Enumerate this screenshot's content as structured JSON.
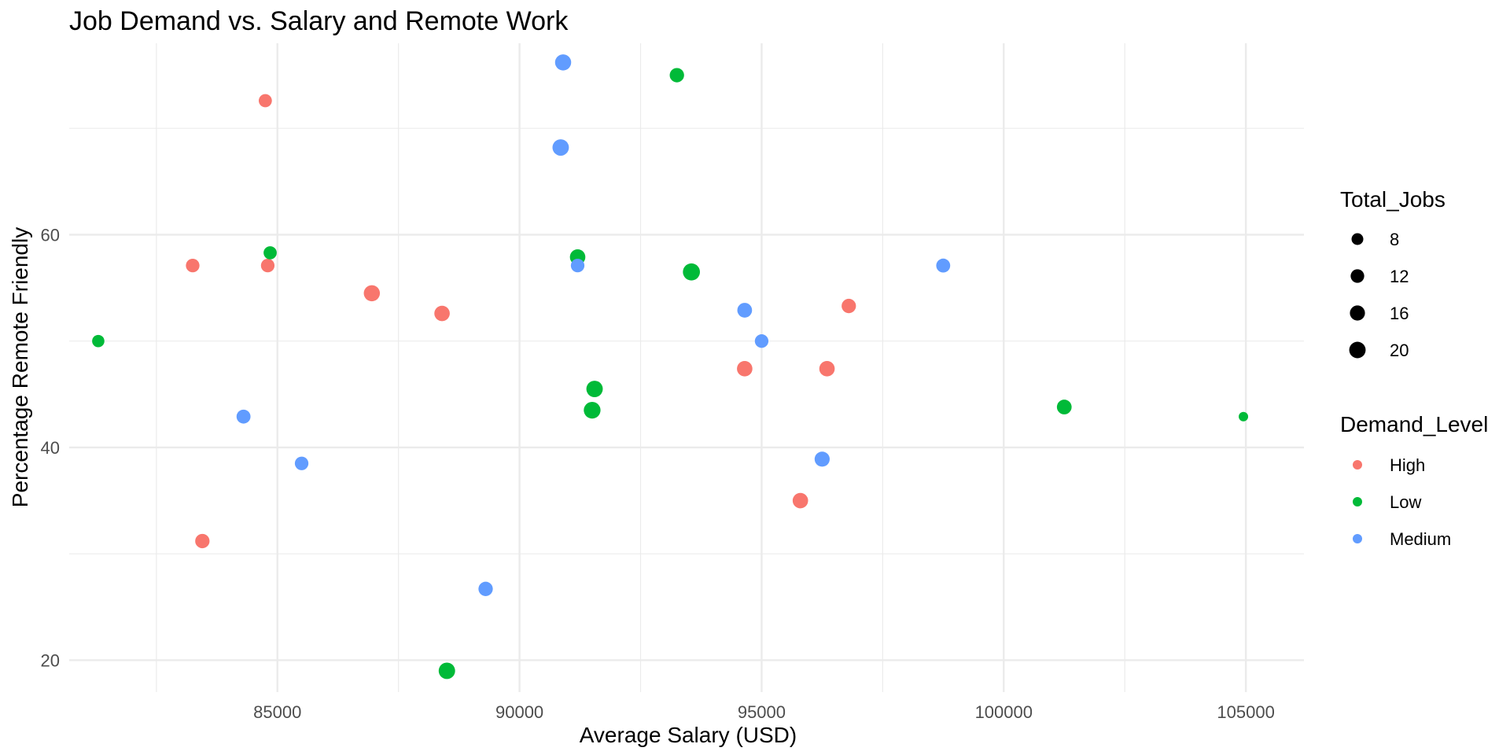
{
  "chart_data": {
    "type": "scatter",
    "title": "Job Demand vs. Salary and Remote Work",
    "xlabel": "Average Salary (USD)",
    "ylabel": "Percentage Remote Friendly",
    "xlim": [
      80700,
      106200
    ],
    "ylim": [
      17,
      78
    ],
    "x_ticks": [
      85000,
      90000,
      95000,
      100000,
      105000
    ],
    "y_ticks": [
      20,
      40,
      60
    ],
    "grid": true,
    "legend_position": "right",
    "size_legend": {
      "title": "Total_Jobs",
      "values": [
        8,
        12,
        16,
        20
      ],
      "labels": [
        "8",
        "12",
        "16",
        "20"
      ]
    },
    "color_legend": {
      "title": "Demand_Level",
      "levels": [
        "High",
        "Low",
        "Medium"
      ],
      "colors": {
        "High": "#F8766D",
        "Low": "#00BA38",
        "Medium": "#619CFF"
      }
    },
    "points": [
      {
        "x": 84750,
        "y": 72.6,
        "size": 11,
        "group": "High"
      },
      {
        "x": 83250,
        "y": 57.1,
        "size": 12,
        "group": "High"
      },
      {
        "x": 84800,
        "y": 57.1,
        "size": 12,
        "group": "High"
      },
      {
        "x": 86950,
        "y": 54.5,
        "size": 19,
        "group": "High"
      },
      {
        "x": 88400,
        "y": 52.6,
        "size": 17,
        "group": "High"
      },
      {
        "x": 83450,
        "y": 31.2,
        "size": 14,
        "group": "High"
      },
      {
        "x": 94650,
        "y": 47.4,
        "size": 17,
        "group": "High"
      },
      {
        "x": 96350,
        "y": 47.4,
        "size": 17,
        "group": "High"
      },
      {
        "x": 96800,
        "y": 53.3,
        "size": 14,
        "group": "High"
      },
      {
        "x": 95800,
        "y": 35.0,
        "size": 17,
        "group": "High"
      },
      {
        "x": 93250,
        "y": 75.0,
        "size": 14,
        "group": "Low"
      },
      {
        "x": 84850,
        "y": 58.3,
        "size": 11,
        "group": "Low"
      },
      {
        "x": 81300,
        "y": 50.0,
        "size": 9,
        "group": "Low"
      },
      {
        "x": 91200,
        "y": 57.9,
        "size": 17,
        "group": "Low"
      },
      {
        "x": 93550,
        "y": 56.5,
        "size": 22,
        "group": "Low"
      },
      {
        "x": 91550,
        "y": 45.5,
        "size": 20,
        "group": "Low"
      },
      {
        "x": 91500,
        "y": 43.5,
        "size": 21,
        "group": "Low"
      },
      {
        "x": 88500,
        "y": 19.0,
        "size": 20,
        "group": "Low"
      },
      {
        "x": 101250,
        "y": 43.8,
        "size": 15,
        "group": "Low"
      },
      {
        "x": 104950,
        "y": 42.9,
        "size": 4,
        "group": "Low"
      },
      {
        "x": 90900,
        "y": 76.2,
        "size": 19,
        "group": "Medium"
      },
      {
        "x": 90850,
        "y": 68.2,
        "size": 20,
        "group": "Medium"
      },
      {
        "x": 91200,
        "y": 57.1,
        "size": 12,
        "group": "Medium"
      },
      {
        "x": 98750,
        "y": 57.1,
        "size": 13,
        "group": "Medium"
      },
      {
        "x": 94650,
        "y": 52.9,
        "size": 15,
        "group": "Medium"
      },
      {
        "x": 95000,
        "y": 50.0,
        "size": 12,
        "group": "Medium"
      },
      {
        "x": 84300,
        "y": 42.9,
        "size": 13,
        "group": "Medium"
      },
      {
        "x": 85500,
        "y": 38.5,
        "size": 12,
        "group": "Medium"
      },
      {
        "x": 96250,
        "y": 38.9,
        "size": 16,
        "group": "Medium"
      },
      {
        "x": 89300,
        "y": 26.7,
        "size": 14,
        "group": "Medium"
      }
    ]
  }
}
